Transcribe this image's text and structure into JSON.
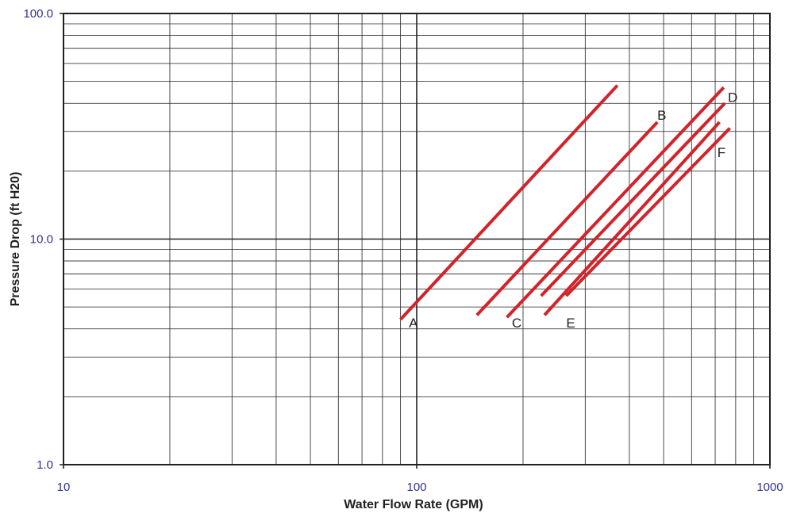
{
  "chart_data": {
    "type": "line",
    "title": "",
    "xlabel": "Water Flow Rate (GPM)",
    "ylabel": "Pressure Drop (ft H20)",
    "x_scale": "log",
    "y_scale": "log",
    "xlim": [
      10,
      1000
    ],
    "ylim": [
      1,
      100
    ],
    "x_ticks": [
      {
        "value": 10,
        "label": "10"
      },
      {
        "value": 100,
        "label": "100"
      },
      {
        "value": 1000,
        "label": "1000"
      }
    ],
    "y_ticks": [
      {
        "value": 1,
        "label": "1.0"
      },
      {
        "value": 10,
        "label": "10.0"
      },
      {
        "value": 100,
        "label": "100.0"
      }
    ],
    "grid": true,
    "legend": "none",
    "colors": {
      "series": "#d2232a",
      "tick_labels": "#2e3192",
      "axis_titles": "#231f20",
      "grid": "#231f20"
    },
    "series": [
      {
        "name": "A",
        "x": [
          90,
          370
        ],
        "y": [
          4.4,
          48
        ]
      },
      {
        "name": "B",
        "x": [
          148,
          480
        ],
        "y": [
          4.6,
          33
        ]
      },
      {
        "name": "C",
        "x": [
          180,
          740
        ],
        "y": [
          4.5,
          47
        ]
      },
      {
        "name": "D",
        "x": [
          225,
          745
        ],
        "y": [
          5.6,
          40
        ]
      },
      {
        "name": "E",
        "x": [
          230,
          720
        ],
        "y": [
          4.6,
          33
        ]
      },
      {
        "name": "F",
        "x": [
          265,
          770
        ],
        "y": [
          5.6,
          31
        ]
      }
    ],
    "annotations": [
      {
        "text": "A",
        "x": 95,
        "y": 4.25
      },
      {
        "text": "B",
        "x": 480,
        "y": 35.5
      },
      {
        "text": "C",
        "x": 186,
        "y": 4.25
      },
      {
        "text": "D",
        "x": 760,
        "y": 42.5
      },
      {
        "text": "E",
        "x": 265,
        "y": 4.25
      },
      {
        "text": "F",
        "x": 710,
        "y": 24.3
      }
    ]
  }
}
